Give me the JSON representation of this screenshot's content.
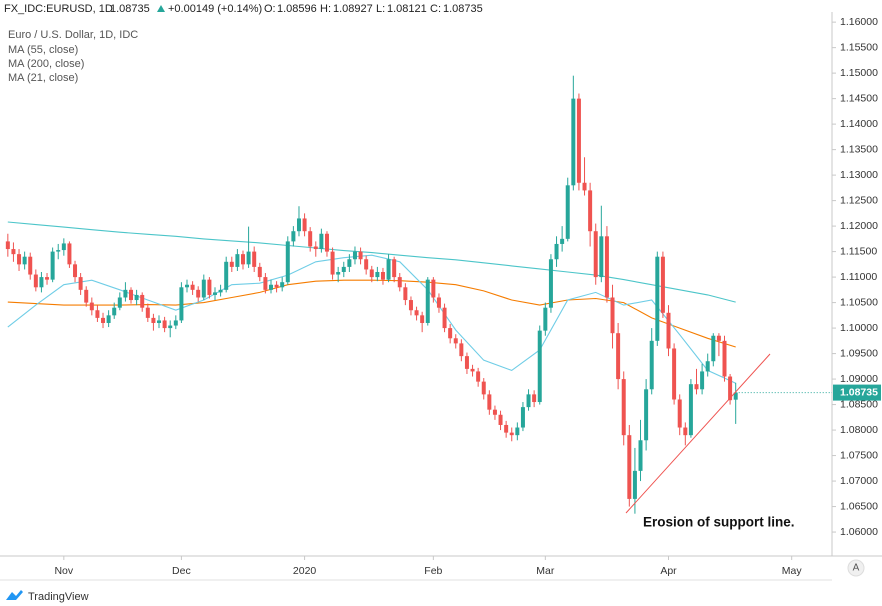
{
  "chart_data": {
    "type": "candlestick",
    "header": {
      "symbol": "FX_IDC:EURUSD, 1D",
      "change": "+0.00149 (+0.14%)",
      "o": "O:",
      "h": "H:",
      "l": "L:",
      "c": "C:"
    },
    "title": "Euro / U.S. Dollar, 1D, IDC",
    "annotation": "Erosion of support line.",
    "up_color": "#26a69a",
    "down_color": "#ef5350",
    "open": [
      1.117,
      1.1155,
      1.1145,
      1.1125,
      1.114,
      1.1105,
      1.108,
      1.11,
      1.1095,
      1.115,
      1.1153,
      1.1166,
      1.1125,
      1.11,
      1.1075,
      1.105,
      1.1035,
      1.102,
      1.101,
      1.1025,
      1.104,
      1.106,
      1.1075,
      1.1055,
      1.1065,
      1.104,
      1.102,
      1.101,
      1.1015,
      1.1,
      1.1005,
      1.1015,
      1.108,
      1.1085,
      1.1075,
      1.106,
      1.1095,
      1.1065,
      1.107,
      1.1075,
      1.113,
      1.112,
      1.1145,
      1.1125,
      1.115,
      1.112,
      1.11,
      1.1075,
      1.1085,
      1.108,
      1.109,
      1.117,
      1.119,
      1.1215,
      1.119,
      1.116,
      1.1155,
      1.1185,
      1.115,
      1.1105,
      1.111,
      1.112,
      1.1135,
      1.115,
      1.1135,
      1.1115,
      1.11,
      1.111,
      1.1095,
      1.1135,
      1.11,
      1.108,
      1.1055,
      1.1035,
      1.1025,
      1.101,
      1.1095,
      1.106,
      1.104,
      1.1,
      1.098,
      1.097,
      1.0945,
      1.092,
      1.0915,
      1.0895,
      1.087,
      1.084,
      1.083,
      1.081,
      1.0795,
      1.079,
      1.0805,
      1.0845,
      1.087,
      1.0855,
      1.0995,
      1.104,
      1.1135,
      1.1165,
      1.1175,
      1.128,
      1.145,
      1.1285,
      1.127,
      1.119,
      1.11,
      1.118,
      1.106,
      1.099,
      1.09,
      1.079,
      1.0665,
      1.072,
      1.078,
      1.088,
      1.0975,
      1.114,
      1.103,
      1.096,
      1.086,
      1.0805,
      1.079,
      1.089,
      1.088,
      1.0915,
      1.0935,
      1.0985,
      1.0975,
      1.0905,
      1.08596
    ],
    "high": [
      1.1185,
      1.1168,
      1.1155,
      1.115,
      1.1148,
      1.1115,
      1.111,
      1.1108,
      1.1158,
      1.1165,
      1.1176,
      1.117,
      1.1132,
      1.1108,
      1.1082,
      1.106,
      1.1045,
      1.103,
      1.1035,
      1.105,
      1.107,
      1.109,
      1.108,
      1.1075,
      1.107,
      1.1048,
      1.1028,
      1.1025,
      1.1022,
      1.1015,
      1.1025,
      1.109,
      1.1095,
      1.1092,
      1.1082,
      1.1105,
      1.11,
      1.108,
      1.1085,
      1.114,
      1.114,
      1.1155,
      1.1152,
      1.1199,
      1.116,
      1.1128,
      1.1108,
      1.1095,
      1.1092,
      1.11,
      1.118,
      1.12,
      1.1239,
      1.1225,
      1.1198,
      1.117,
      1.1195,
      1.119,
      1.1158,
      1.112,
      1.113,
      1.1145,
      1.116,
      1.1158,
      1.1142,
      1.1122,
      1.112,
      1.1118,
      1.1145,
      1.114,
      1.1108,
      1.1088,
      1.1062,
      1.1042,
      1.1032,
      1.11,
      1.11,
      1.1068,
      1.1048,
      1.1008,
      1.0988,
      1.0978,
      1.0952,
      1.0928,
      1.0922,
      1.0902,
      1.0878,
      1.0848,
      1.0838,
      1.0818,
      1.0805,
      1.0815,
      1.0855,
      1.088,
      1.0878,
      1.1005,
      1.105,
      1.1145,
      1.118,
      1.12,
      1.1295,
      1.1495,
      1.146,
      1.1335,
      1.1285,
      1.1205,
      1.124,
      1.12,
      1.1085,
      1.101,
      1.0915,
      1.081,
      1.0765,
      1.082,
      1.09,
      1.1,
      1.115,
      1.115,
      1.1045,
      1.097,
      1.087,
      1.0815,
      1.09,
      1.092,
      1.093,
      1.095,
      1.099,
      1.099,
      1.0985,
      1.091,
      1.08927
    ],
    "low": [
      1.114,
      1.113,
      1.1112,
      1.1115,
      1.1095,
      1.1072,
      1.107,
      1.1085,
      1.109,
      1.1135,
      1.1142,
      1.1118,
      1.109,
      1.1065,
      1.1042,
      1.1025,
      1.1012,
      1.1,
      1.1002,
      1.1018,
      1.1035,
      1.1052,
      1.1048,
      1.1045,
      1.1032,
      1.1012,
      1.0995,
      1.1,
      1.0992,
      1.0982,
      1.0998,
      1.101,
      1.107,
      1.1065,
      1.1052,
      1.1055,
      1.1058,
      1.1055,
      1.1062,
      1.107,
      1.111,
      1.1112,
      1.1115,
      1.1118,
      1.111,
      1.1092,
      1.1068,
      1.1068,
      1.107,
      1.1072,
      1.1085,
      1.116,
      1.118,
      1.118,
      1.115,
      1.114,
      1.1148,
      1.114,
      1.1095,
      1.109,
      1.11,
      1.111,
      1.1125,
      1.1125,
      1.1105,
      1.109,
      1.1092,
      1.1085,
      1.109,
      1.109,
      1.1072,
      1.1045,
      1.1025,
      1.1015,
      1.0992,
      1.1005,
      1.105,
      1.103,
      1.0992,
      1.097,
      1.096,
      1.0935,
      1.091,
      1.0905,
      1.0885,
      1.086,
      1.083,
      1.082,
      1.08,
      1.0785,
      1.0778,
      1.078,
      1.0798,
      1.0838,
      1.0845,
      1.085,
      1.0985,
      1.103,
      1.112,
      1.115,
      1.117,
      1.127,
      1.127,
      1.126,
      1.116,
      1.1085,
      1.109,
      1.105,
      1.096,
      1.088,
      1.077,
      1.065,
      1.0636,
      1.07,
      1.076,
      1.087,
      1.0965,
      1.102,
      1.0945,
      1.085,
      1.079,
      1.077,
      1.0785,
      1.087,
      1.087,
      1.0905,
      1.0925,
      1.0945,
      1.0895,
      1.085,
      1.08121
    ],
    "close": [
      1.1155,
      1.1145,
      1.1125,
      1.114,
      1.1105,
      1.108,
      1.11,
      1.1095,
      1.115,
      1.1153,
      1.1166,
      1.1125,
      1.11,
      1.1075,
      1.105,
      1.1035,
      1.102,
      1.101,
      1.1025,
      1.104,
      1.106,
      1.1075,
      1.1055,
      1.1065,
      1.104,
      1.102,
      1.101,
      1.1015,
      1.1,
      1.1005,
      1.1015,
      1.108,
      1.1085,
      1.1075,
      1.106,
      1.1095,
      1.1065,
      1.107,
      1.1075,
      1.113,
      1.112,
      1.1145,
      1.1125,
      1.115,
      1.112,
      1.11,
      1.1075,
      1.1085,
      1.108,
      1.109,
      1.117,
      1.119,
      1.1215,
      1.119,
      1.116,
      1.1155,
      1.1185,
      1.115,
      1.1105,
      1.111,
      1.112,
      1.1135,
      1.115,
      1.1135,
      1.1115,
      1.11,
      1.111,
      1.1095,
      1.1135,
      1.11,
      1.108,
      1.1055,
      1.1035,
      1.1025,
      1.101,
      1.1095,
      1.106,
      1.104,
      1.1,
      1.098,
      1.097,
      1.0945,
      1.092,
      1.0915,
      1.0895,
      1.087,
      1.084,
      1.083,
      1.081,
      1.0795,
      1.079,
      1.0805,
      1.0845,
      1.087,
      1.0855,
      1.0995,
      1.104,
      1.1135,
      1.1165,
      1.1175,
      1.128,
      1.145,
      1.1285,
      1.127,
      1.119,
      1.11,
      1.118,
      1.106,
      1.099,
      1.09,
      1.079,
      1.0665,
      1.072,
      1.078,
      1.088,
      1.0975,
      1.114,
      1.103,
      1.096,
      1.086,
      1.0805,
      1.079,
      1.089,
      1.088,
      1.0915,
      1.0935,
      1.0985,
      1.0975,
      1.0905,
      1.08586,
      1.08735
    ],
    "series": [
      {
        "name": "MA (55, close)",
        "color": "#f57c00",
        "x": [
          0,
          5,
          10,
          15,
          20,
          25,
          30,
          35,
          40,
          45,
          50,
          55,
          60,
          65,
          70,
          75,
          80,
          85,
          90,
          95,
          100,
          105,
          110,
          115,
          120,
          125,
          130
        ],
        "values": [
          1.1051,
          1.1048,
          1.1045,
          1.1045,
          1.1045,
          1.1046,
          1.1045,
          1.105,
          1.106,
          1.107,
          1.1085,
          1.1092,
          1.1094,
          1.1094,
          1.1093,
          1.109,
          1.1085,
          1.1073,
          1.1055,
          1.1045,
          1.1055,
          1.1058,
          1.105,
          1.102,
          1.1,
          1.098,
          1.0963
        ]
      },
      {
        "name": "MA (200, close)",
        "color": "#4cc5c9",
        "x": [
          0,
          5,
          10,
          15,
          20,
          25,
          30,
          35,
          40,
          45,
          50,
          55,
          60,
          65,
          70,
          75,
          80,
          85,
          90,
          95,
          100,
          105,
          110,
          115,
          120,
          125,
          130
        ],
        "values": [
          1.1208,
          1.1203,
          1.1198,
          1.1193,
          1.1188,
          1.1184,
          1.118,
          1.1175,
          1.1171,
          1.1167,
          1.1162,
          1.1157,
          1.1152,
          1.1148,
          1.1143,
          1.1138,
          1.1134,
          1.1128,
          1.1122,
          1.1116,
          1.111,
          1.1104,
          1.1095,
          1.1085,
          1.1075,
          1.1065,
          1.1051
        ]
      },
      {
        "name": "MA (21, close)",
        "color": "#6fcde6",
        "x": [
          0,
          5,
          10,
          15,
          20,
          25,
          30,
          35,
          40,
          45,
          50,
          55,
          60,
          65,
          70,
          75,
          80,
          85,
          90,
          95,
          100,
          105,
          110,
          115,
          120,
          125,
          130
        ],
        "values": [
          1.1002,
          1.1045,
          1.1085,
          1.1094,
          1.1075,
          1.1055,
          1.1035,
          1.1055,
          1.1085,
          1.1088,
          1.1104,
          1.113,
          1.1138,
          1.1143,
          1.113,
          1.1075,
          1.0996,
          1.0937,
          1.0917,
          1.0957,
          1.1055,
          1.107,
          1.1045,
          1.1055,
          1.0987,
          1.0917,
          1.0892
        ]
      }
    ],
    "xlim": [
      -1.4,
      147.2
    ],
    "xticks": [
      {
        "value": 10,
        "label": "Nov"
      },
      {
        "value": 31,
        "label": "Dec"
      },
      {
        "value": 53,
        "label": "2020"
      },
      {
        "value": 76,
        "label": "Feb"
      },
      {
        "value": 96,
        "label": "Mar"
      },
      {
        "value": 118,
        "label": "Apr"
      },
      {
        "value": 140,
        "label": "May"
      }
    ],
    "ylim": [
      1.0555,
      1.1614
    ],
    "yticks": [
      {
        "value": 1.06,
        "label": "1.06000"
      },
      {
        "value": 1.065,
        "label": "1.06500"
      },
      {
        "value": 1.07,
        "label": "1.07000"
      },
      {
        "value": 1.075,
        "label": "1.07500"
      },
      {
        "value": 1.08,
        "label": "1.08000"
      },
      {
        "value": 1.085,
        "label": "1.08500"
      },
      {
        "value": 1.09,
        "label": "1.09000"
      },
      {
        "value": 1.095,
        "label": "1.09500"
      },
      {
        "value": 1.1,
        "label": "1.10000"
      },
      {
        "value": 1.105,
        "label": "1.10500"
      },
      {
        "value": 1.11,
        "label": "1.11000"
      },
      {
        "value": 1.115,
        "label": "1.11500"
      },
      {
        "value": 1.12,
        "label": "1.12000"
      },
      {
        "value": 1.125,
        "label": "1.12500"
      },
      {
        "value": 1.13,
        "label": "1.13000"
      },
      {
        "value": 1.135,
        "label": "1.13500"
      },
      {
        "value": 1.14,
        "label": "1.14000"
      },
      {
        "value": 1.145,
        "label": "1.14500"
      },
      {
        "value": 1.15,
        "label": "1.15000"
      },
      {
        "value": 1.155,
        "label": "1.15500"
      },
      {
        "value": 1.16,
        "label": "1.16000"
      }
    ],
    "footer": {
      "brand": "TradingView",
      "scale_button": "A"
    }
  }
}
